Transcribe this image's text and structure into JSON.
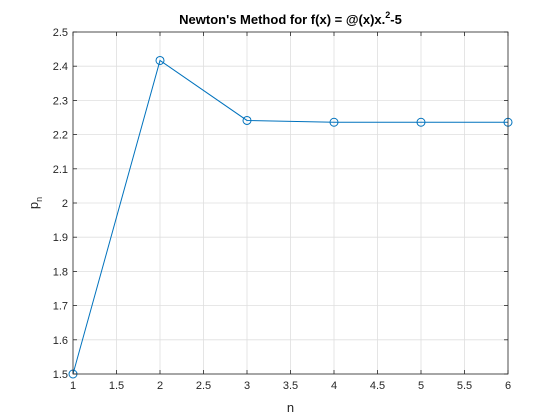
{
  "chart_data": {
    "type": "line",
    "title_prefix": "Newton's Method for f(x) = @(x)x.",
    "title_superscript": "2",
    "title_suffix": "-5",
    "xlabel": "n",
    "ylabel_main": "p",
    "ylabel_subscript": "n",
    "xlim": [
      1,
      6
    ],
    "ylim": [
      1.5,
      2.5
    ],
    "xticks": [
      1,
      1.5,
      2,
      2.5,
      3,
      3.5,
      4,
      4.5,
      5,
      5.5,
      6
    ],
    "yticks": [
      1.5,
      1.6,
      1.7,
      1.8,
      1.9,
      2,
      2.1,
      2.2,
      2.3,
      2.4,
      2.5
    ],
    "xtick_labels": [
      "1",
      "1.5",
      "2",
      "2.5",
      "3",
      "3.5",
      "4",
      "4.5",
      "5",
      "5.5",
      "6"
    ],
    "ytick_labels": [
      "1.5",
      "1.6",
      "1.7",
      "1.8",
      "1.9",
      "2",
      "2.1",
      "2.2",
      "2.3",
      "2.4",
      "2.5"
    ],
    "grid": true,
    "marker": "circle",
    "series": [
      {
        "color": "#0072bd",
        "x": [
          1,
          2,
          3,
          4,
          5,
          6
        ],
        "y": [
          1.5,
          2.4167,
          2.2414,
          2.2361,
          2.2361,
          2.2361
        ]
      }
    ]
  }
}
